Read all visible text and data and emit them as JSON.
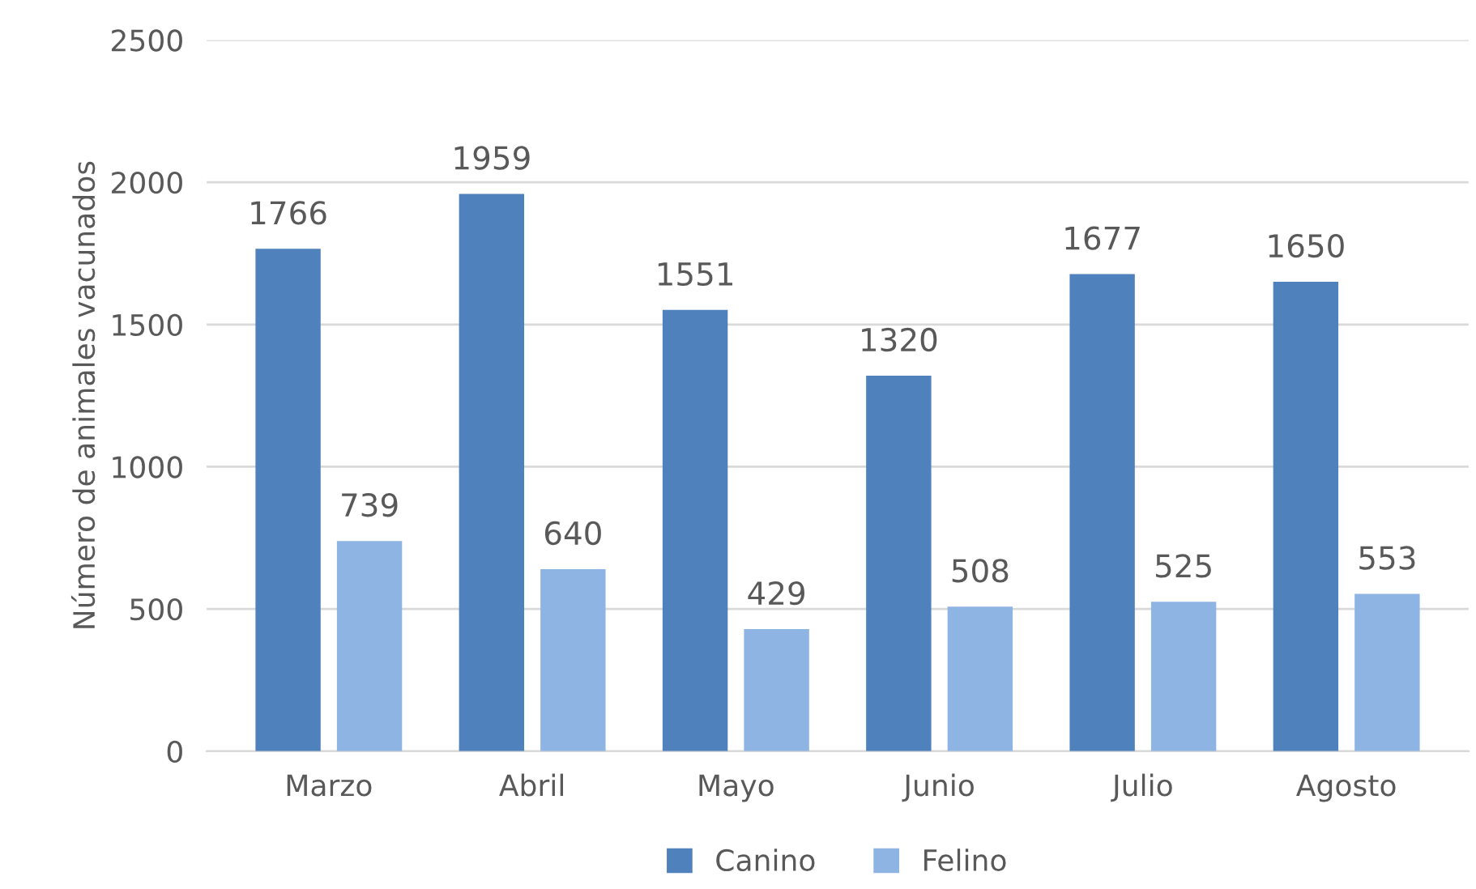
{
  "chart_data": {
    "type": "bar",
    "ylabel": "Número de animales vacunados",
    "categories": [
      "Marzo",
      "Abril",
      "Mayo",
      "Junio",
      "Julio",
      "Agosto"
    ],
    "series": [
      {
        "name": "Canino",
        "color": "#4f81bd",
        "values": [
          1766,
          1959,
          1551,
          1320,
          1677,
          1650
        ]
      },
      {
        "name": "Felino",
        "color": "#8eb4e3",
        "values": [
          739,
          640,
          429,
          508,
          525,
          553
        ]
      }
    ],
    "ylim": [
      0,
      2500
    ],
    "yticks": [
      0,
      500,
      1000,
      1500,
      2000,
      2500
    ],
    "grid": "y",
    "legend": "bottom",
    "data_labels": true
  }
}
